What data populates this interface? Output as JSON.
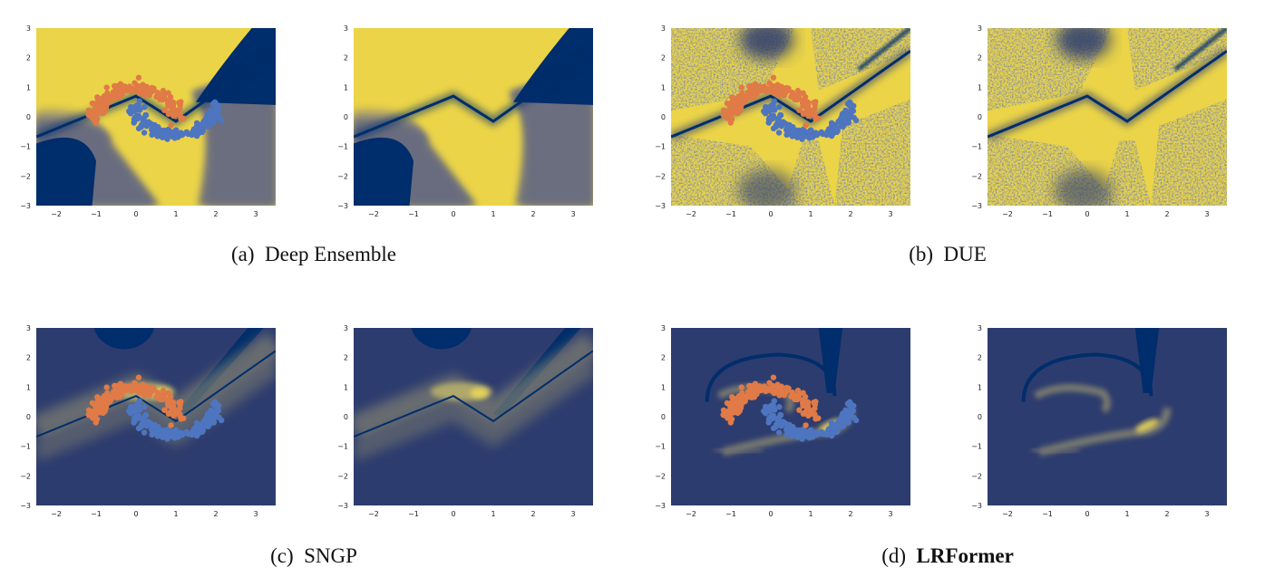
{
  "captions": [
    {
      "tag": "(a)",
      "name": "Deep Ensemble",
      "bold": false
    },
    {
      "tag": "(b)",
      "name": "DUE",
      "bold": false
    },
    {
      "tag": "(c)",
      "name": "SNGP",
      "bold": false
    },
    {
      "tag": "(d)",
      "name": "LRFormer",
      "bold": true
    }
  ],
  "chart_data": [
    {
      "type": "heatmap",
      "group": "(a)",
      "title": "",
      "xlabel": "",
      "ylabel": "",
      "xlim": [
        -2.5,
        3.5
      ],
      "ylim": [
        -3,
        3
      ],
      "xticks": [
        -2,
        -1,
        0,
        1,
        2,
        3
      ],
      "yticks": [
        -3,
        -2,
        -1,
        0,
        1,
        2,
        3
      ],
      "scatter": true,
      "style": "ensemble"
    },
    {
      "type": "heatmap",
      "group": "(a)",
      "title": "",
      "xlabel": "",
      "ylabel": "",
      "xlim": [
        -2.5,
        3.5
      ],
      "ylim": [
        -3,
        3
      ],
      "xticks": [
        -2,
        -1,
        0,
        1,
        2,
        3
      ],
      "yticks": [
        -3,
        -2,
        -1,
        0,
        1,
        2,
        3
      ],
      "scatter": false,
      "style": "ensemble"
    },
    {
      "type": "heatmap",
      "group": "(b)",
      "title": "",
      "xlabel": "",
      "ylabel": "",
      "xlim": [
        -2.5,
        3.5
      ],
      "ylim": [
        -3,
        3
      ],
      "xticks": [
        -2,
        -1,
        0,
        1,
        2,
        3
      ],
      "yticks": [
        -3,
        -2,
        -1,
        0,
        1,
        2,
        3
      ],
      "scatter": true,
      "style": "due"
    },
    {
      "type": "heatmap",
      "group": "(b)",
      "title": "",
      "xlabel": "",
      "ylabel": "",
      "xlim": [
        -2.5,
        3.5
      ],
      "ylim": [
        -3,
        3
      ],
      "xticks": [
        -2,
        -1,
        0,
        1,
        2,
        3
      ],
      "yticks": [
        -3,
        -2,
        -1,
        0,
        1,
        2,
        3
      ],
      "scatter": false,
      "style": "due"
    },
    {
      "type": "heatmap",
      "group": "(c)",
      "title": "",
      "xlabel": "",
      "ylabel": "",
      "xlim": [
        -2.5,
        3.5
      ],
      "ylim": [
        -3,
        3
      ],
      "xticks": [
        -2,
        -1,
        0,
        1,
        2,
        3
      ],
      "yticks": [
        -3,
        -2,
        -1,
        0,
        1,
        2,
        3
      ],
      "scatter": true,
      "style": "sngp"
    },
    {
      "type": "heatmap",
      "group": "(c)",
      "title": "",
      "xlabel": "",
      "ylabel": "",
      "xlim": [
        -2.5,
        3.5
      ],
      "ylim": [
        -3,
        3
      ],
      "xticks": [
        -2,
        -1,
        0,
        1,
        2,
        3
      ],
      "yticks": [
        -3,
        -2,
        -1,
        0,
        1,
        2,
        3
      ],
      "scatter": false,
      "style": "sngp"
    },
    {
      "type": "heatmap",
      "group": "(d)",
      "title": "",
      "xlabel": "",
      "ylabel": "",
      "xlim": [
        -2.5,
        3.5
      ],
      "ylim": [
        -3,
        3
      ],
      "xticks": [
        -2,
        -1,
        0,
        1,
        2,
        3
      ],
      "yticks": [
        -3,
        -2,
        -1,
        0,
        1,
        2,
        3
      ],
      "scatter": true,
      "style": "lrformer"
    },
    {
      "type": "heatmap",
      "group": "(d)",
      "title": "",
      "xlabel": "",
      "ylabel": "",
      "xlim": [
        -2.5,
        3.5
      ],
      "ylim": [
        -3,
        3
      ],
      "xticks": [
        -2,
        -1,
        0,
        1,
        2,
        3
      ],
      "yticks": [
        -3,
        -2,
        -1,
        0,
        1,
        2,
        3
      ],
      "scatter": false,
      "style": "lrformer"
    }
  ],
  "colors": {
    "navy": "#002d6b",
    "slate": "#2d3c6e",
    "yellow": "#ebd448",
    "orange_points": "#e07a47",
    "blue_points": "#4e75c0"
  }
}
